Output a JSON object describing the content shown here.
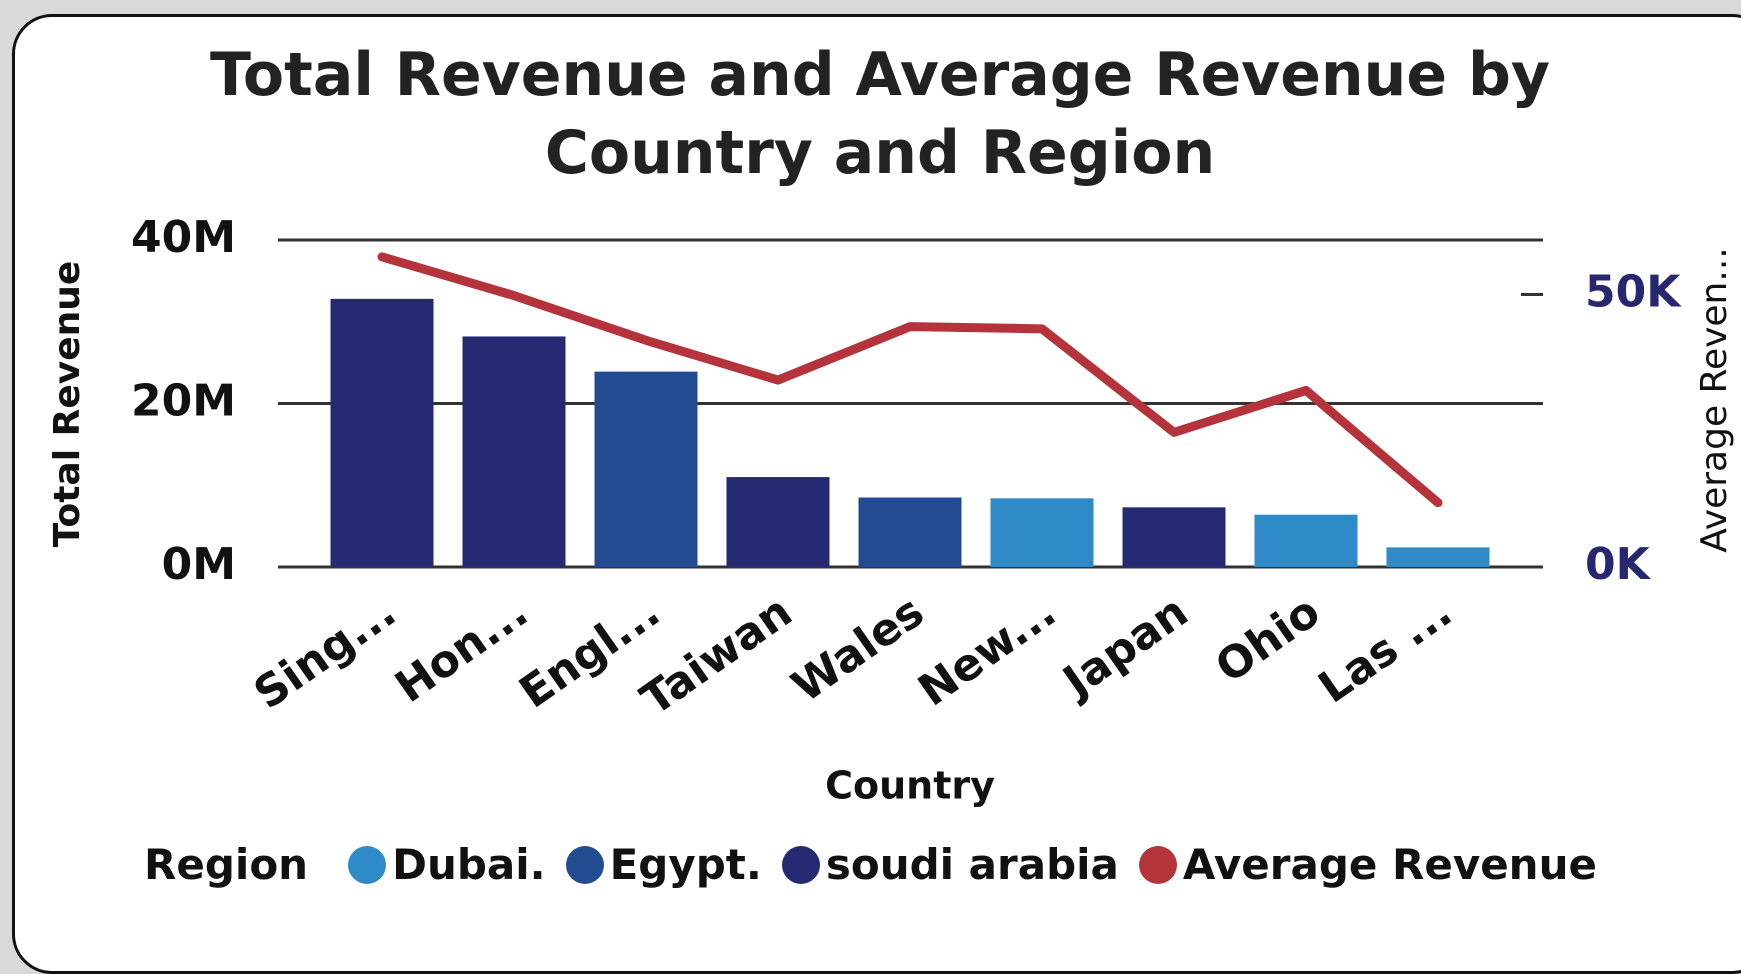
{
  "chart_data": {
    "type": "bar",
    "title": "Total Revenue and Average Revenue by Country and Region",
    "xlabel": "Country",
    "ylabel": "Total Revenue",
    "y2label": "Average Reven...",
    "legend_title": "Region",
    "categories": [
      "Sing...",
      "Hon...",
      "Engl...",
      "Taiwan",
      "Wales",
      "New...",
      "Japan",
      "Ohio",
      "Las ..."
    ],
    "series": [
      {
        "name": "Dubai.",
        "color": "#2f8ac8",
        "type": "bar",
        "values": [
          null,
          null,
          null,
          null,
          null,
          8400000,
          null,
          6400000,
          2400000
        ]
      },
      {
        "name": "Egypt.",
        "color": "#234b91",
        "type": "bar",
        "values": [
          null,
          null,
          23900000,
          null,
          8500000,
          null,
          null,
          null,
          null
        ]
      },
      {
        "name": "soudi arabia",
        "color": "#262a73",
        "type": "bar",
        "values": [
          32800000,
          28200000,
          null,
          11000000,
          null,
          null,
          7300000,
          null,
          null
        ]
      },
      {
        "name": "Average Revenue",
        "color": "#b5333a",
        "type": "line",
        "axis": "y2",
        "values": [
          56900,
          49800,
          41600,
          34300,
          44100,
          43700,
          24700,
          32400,
          11800
        ]
      }
    ],
    "ylim": [
      0,
      40000000
    ],
    "yticks": [
      {
        "value": 0,
        "label": "0M"
      },
      {
        "value": 20000000,
        "label": "20M"
      },
      {
        "value": 40000000,
        "label": "40M"
      }
    ],
    "y2lim": [
      0,
      60000
    ],
    "y2ticks": [
      {
        "value": 0,
        "label": "0K"
      },
      {
        "value": 50000,
        "label": "50K"
      }
    ],
    "grid": true,
    "legend": "bottom"
  }
}
